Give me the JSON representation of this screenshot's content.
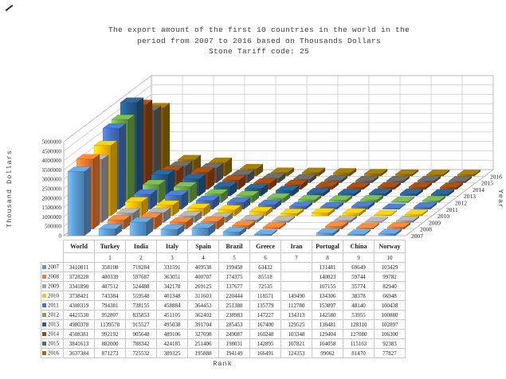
{
  "title": {
    "lines": "The export amount of the first 10 countries in the world in the\nperiod from 2007 to 2016 based on Thousands Dollars\nStone Tariff code: 25"
  },
  "axes": {
    "value_axis_label": "Thousand Dollars",
    "depth_axis_label": "Year",
    "category_axis_label": "Rank"
  },
  "chart_data": {
    "type": "bar",
    "projection": "3d-column",
    "title": "The export amount of the first 10 countries in the world in the period from 2007 to 2016 based on Thousands Dollars  Stone Tariff code: 25",
    "xlabel": "Rank",
    "ylabel": "Thousand Dollars",
    "zlabel": "Year",
    "ylim": [
      0,
      5000000
    ],
    "ytick_interval": 500000,
    "ytick_labels": [
      "0",
      "500000",
      "1000000",
      "1500000",
      "2000000",
      "2500000",
      "3000000",
      "3500000",
      "4000000",
      "4500000",
      "5000000"
    ],
    "grid": true,
    "legend_position": "table-left",
    "categories": [
      "World",
      "Turkey",
      "India",
      "Italy",
      "Spain",
      "Brazil",
      "Greece",
      "Iran",
      "Portugal",
      "China",
      "Norway"
    ],
    "ranks": [
      "",
      "1",
      "2",
      "3",
      "4",
      "5",
      "6",
      "7",
      "8",
      "9",
      "10"
    ],
    "series": [
      {
        "name": "2007",
        "color": "#5B9BD5",
        "values": [
          3410811,
          358108,
          718284,
          331591,
          409538,
          199458,
          63432,
          null,
          131481,
          69649,
          103429
        ]
      },
      {
        "name": "2008",
        "color": "#ED7D31",
        "values": [
          3728228,
          480339,
          597687,
          363051,
          400707,
          174375,
          85518,
          null,
          140823,
          59744,
          99782
        ]
      },
      {
        "name": "2009",
        "color": "#A5A5A5",
        "values": [
          3341890,
          487512,
          524488,
          342178,
          269125,
          137677,
          72535,
          null,
          107155,
          35774,
          82940
        ]
      },
      {
        "name": "2010",
        "color": "#FFC000",
        "values": [
          3738421,
          743384,
          559548,
          401348,
          311603,
          220444,
          118571,
          149490,
          134306,
          38378,
          66948
        ]
      },
      {
        "name": "2011",
        "color": "#4472C4",
        "values": [
          4308319,
          794381,
          738155,
          458884,
          364453,
          251388,
          135779,
          112780,
          153897,
          48140,
          100438
        ]
      },
      {
        "name": "2012",
        "color": "#70AD47",
        "values": [
          4421530,
          952807,
          835853,
          451105,
          362402,
          238983,
          147227,
          134313,
          142580,
          53955,
          100880
        ]
      },
      {
        "name": "2013",
        "color": "#255E91",
        "values": [
          4980378,
          1139578,
          915527,
          495038,
          391704,
          285453,
          167400,
          129525,
          138481,
          128310,
          102897
        ]
      },
      {
        "name": "2014",
        "color": "#9E480E",
        "values": [
          4508381,
          992192,
          905648,
          489106,
          327698,
          249087,
          160248,
          103348,
          129404,
          127080,
          106300
        ]
      },
      {
        "name": "2015",
        "color": "#636363",
        "values": [
          3841613,
          882000,
          788342,
          424185,
          251406,
          198031,
          142895,
          107821,
          104058,
          115163,
          92383
        ]
      },
      {
        "name": "2016",
        "color": "#997300",
        "values": [
          3637384,
          871273,
          725532,
          389325,
          195888,
          194149,
          166491,
          124353,
          99062,
          81470,
          77827
        ]
      }
    ]
  }
}
